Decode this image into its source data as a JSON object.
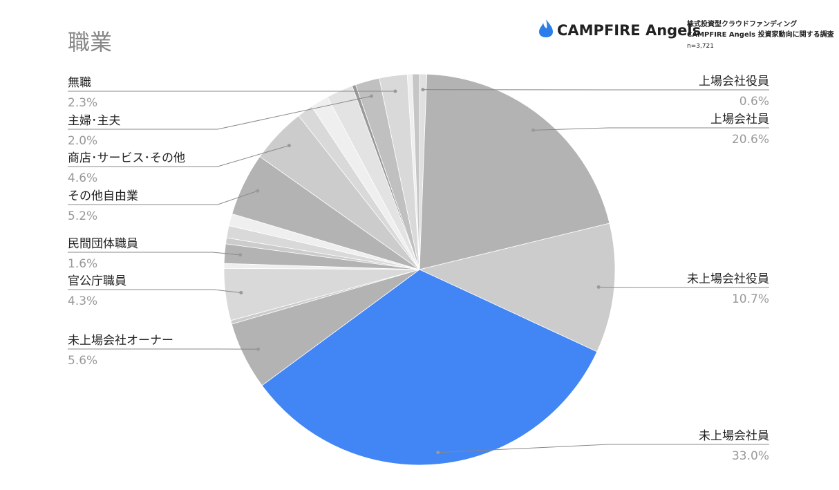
{
  "header": {
    "brand": "CAMPFIRE Angels",
    "survey_line1": "株式投資型クラウドファンディング",
    "survey_line2": "CAMPFIRE Angels 投資家動向に関する調査",
    "sample": "n=3,721"
  },
  "chart_data": {
    "type": "pie",
    "title": "職業",
    "categories": [
      "上場会社役員",
      "上場会社員",
      "未上場会社役員",
      "未上場会社員",
      "未上場会社オーナー",
      null,
      "官公庁職員",
      null,
      "民間団体職員",
      null,
      null,
      null,
      "その他自由業",
      "商店･サービス･その他",
      null,
      null,
      null,
      null,
      "主婦･主夫",
      "無職",
      null,
      null
    ],
    "values": [
      0.6,
      20.6,
      10.7,
      33.0,
      5.6,
      0.3,
      4.3,
      0.4,
      1.6,
      0.5,
      1.0,
      1.0,
      5.2,
      4.6,
      1.3,
      1.5,
      2.2,
      0.3,
      2.0,
      2.3,
      0.4,
      0.6
    ],
    "value_labels": [
      "0.6%",
      "20.6%",
      "10.7%",
      "33.0%",
      "5.6%",
      null,
      "4.3%",
      null,
      "1.6%",
      null,
      null,
      null,
      "5.2%",
      "4.6%",
      null,
      null,
      null,
      null,
      "2.0%",
      "2.3%",
      null,
      null
    ],
    "colors": [
      "#e0e0e0",
      "#b3b3b3",
      "#cccccc",
      "#4285f4",
      "#b3b3b3",
      "#cccccc",
      "#d9d9d9",
      "#efefef",
      "#b3b3b3",
      "#cccccc",
      "#d9d9d9",
      "#efefef",
      "#b3b3b3",
      "#cccccc",
      "#d9d9d9",
      "#efefef",
      "#e3e3e3",
      "#999999",
      "#c0c0c0",
      "#d9d9d9",
      "#efefef",
      "#c6c6c6"
    ]
  }
}
